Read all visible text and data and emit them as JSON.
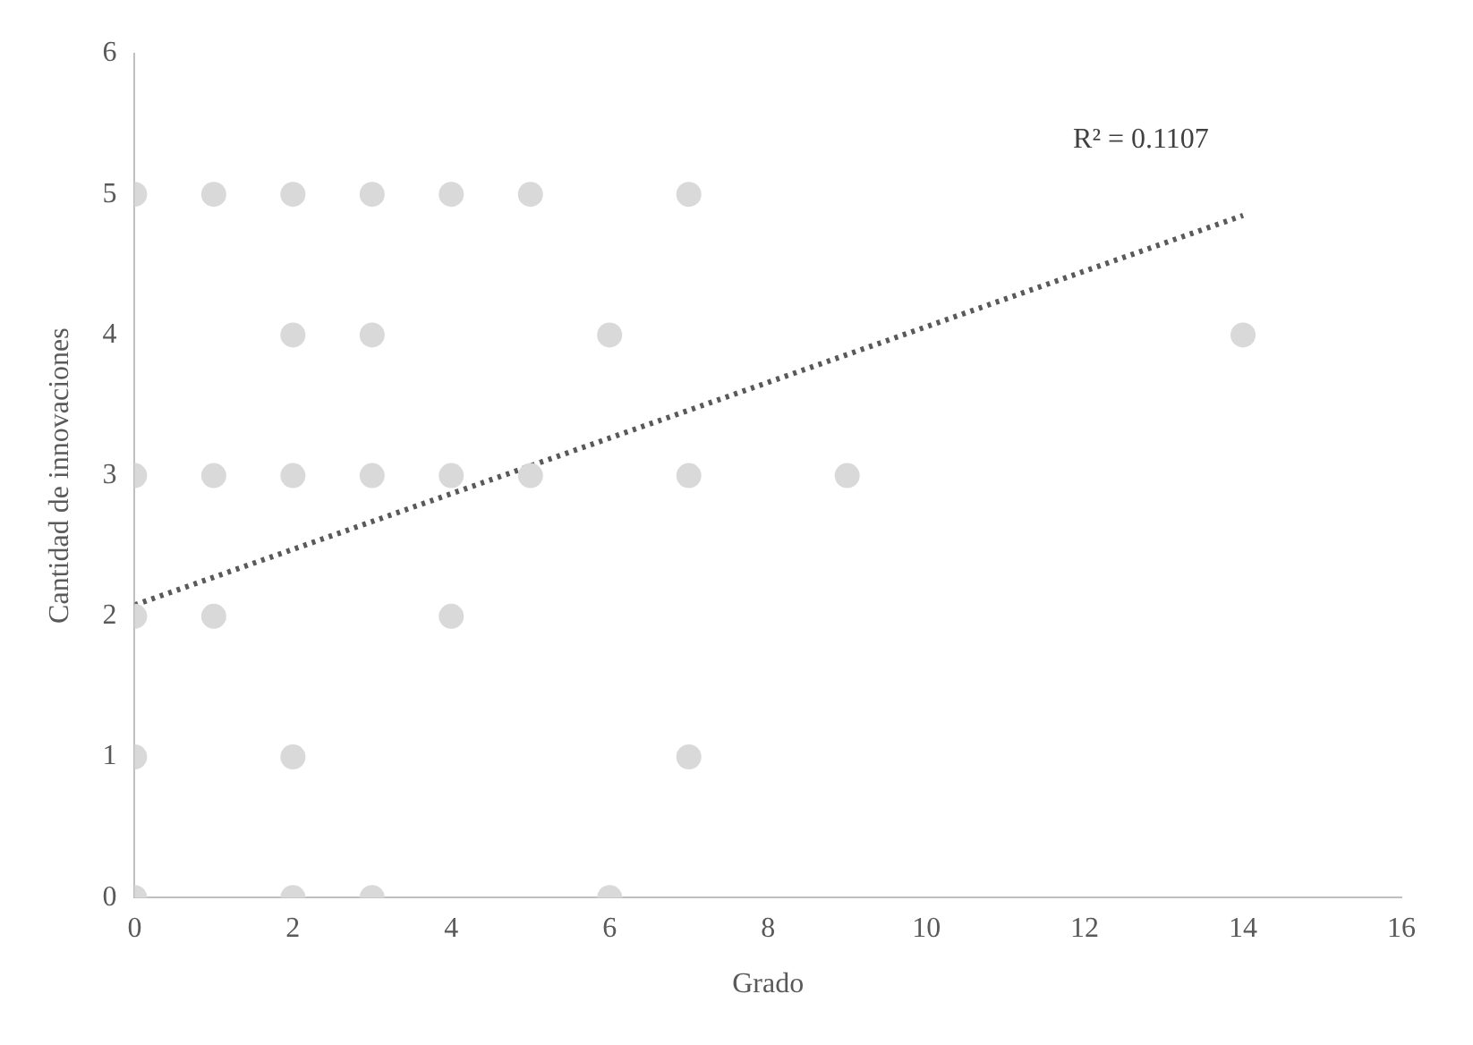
{
  "chart_data": {
    "type": "scatter",
    "xlabel": "Grado",
    "ylabel": "Cantidad de innovaciones",
    "xlim": [
      0,
      16
    ],
    "xticks": [
      0,
      2,
      4,
      6,
      8,
      10,
      12,
      14,
      16
    ],
    "ylim": [
      0,
      6
    ],
    "yticks": [
      0,
      1,
      2,
      3,
      4,
      5,
      6
    ],
    "grid": false,
    "legend": false,
    "marker": "circle",
    "series": [
      {
        "type": "scatter",
        "color": "#d9d9d9",
        "x": [
          0,
          1,
          2,
          3,
          4,
          5,
          7,
          2,
          3,
          6,
          14,
          0,
          1,
          2,
          3,
          4,
          5,
          7,
          9,
          0,
          1,
          4,
          0,
          2,
          7,
          0,
          2,
          3,
          6
        ],
        "values": [
          5,
          5,
          5,
          5,
          5,
          5,
          5,
          4,
          4,
          4,
          4,
          3,
          3,
          3,
          3,
          3,
          3,
          3,
          3,
          2,
          2,
          2,
          1,
          1,
          1,
          0,
          0,
          0,
          0
        ]
      },
      {
        "type": "line",
        "color": "#595959",
        "x": [
          0,
          14
        ],
        "values": [
          2.08,
          4.85
        ],
        "marker": "none",
        "line_style": "dotted"
      }
    ],
    "annotations": [
      "R² = 0.1107"
    ]
  }
}
